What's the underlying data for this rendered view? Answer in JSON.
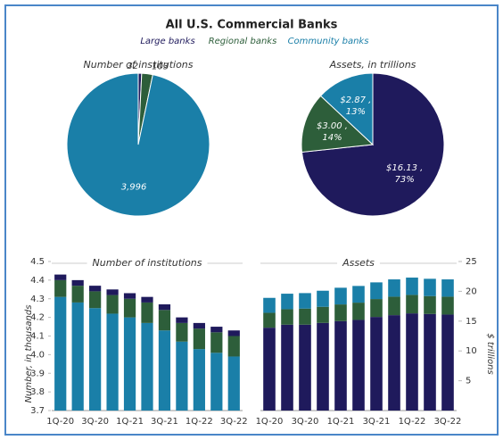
{
  "title": "All U.S. Commercial Banks",
  "chart_data": [
    {
      "type": "pie",
      "title": "Number of institutions",
      "categories": [
        "Large banks",
        "Regional banks",
        "Community banks"
      ],
      "colors": [
        "#1f1a5c",
        "#2d5e3a",
        "#1a7fa8"
      ],
      "values": [
        32,
        103,
        3996
      ],
      "value_labels": [
        "32",
        "103",
        "3,996"
      ]
    },
    {
      "type": "pie",
      "title": "Assets, in trillions",
      "categories": [
        "Large banks",
        "Regional banks",
        "Community banks"
      ],
      "colors": [
        "#1f1a5c",
        "#2d5e3a",
        "#1a7fa8"
      ],
      "values": [
        16.13,
        3.0,
        2.87
      ],
      "value_labels": [
        "$16.13 ,",
        "$3.00 ,",
        "$2.87 ,"
      ],
      "percents": [
        73,
        14,
        13
      ],
      "percent_labels": [
        "73%",
        "14%",
        "13%"
      ]
    },
    {
      "type": "bar",
      "title": "Number of institutions",
      "y_label": "Number, in thousands",
      "categories": [
        "1Q-20",
        null,
        "3Q-20",
        null,
        "1Q-21",
        null,
        "3Q-21",
        null,
        "1Q-22",
        null,
        "3Q-22"
      ],
      "series": [
        {
          "name": "Community banks",
          "color": "#1a7fa8",
          "values": [
            4.31,
            4.28,
            4.25,
            4.22,
            4.2,
            4.17,
            4.13,
            4.07,
            4.03,
            4.01,
            3.99
          ]
        },
        {
          "name": "Regional banks",
          "color": "#2d5e3a",
          "values": [
            0.09,
            0.09,
            0.09,
            0.1,
            0.1,
            0.11,
            0.11,
            0.1,
            0.11,
            0.11,
            0.11
          ]
        },
        {
          "name": "Large banks",
          "color": "#1f1a5c",
          "values": [
            0.03,
            0.03,
            0.03,
            0.03,
            0.03,
            0.03,
            0.03,
            0.03,
            0.03,
            0.03,
            0.03
          ]
        }
      ],
      "ylim": [
        3.7,
        4.5
      ],
      "yticks": [
        3.7,
        3.8,
        3.9,
        {
          "value": 4,
          "label": "4.0"
        },
        4.1,
        4.2,
        4.3,
        4.4,
        4.5
      ]
    },
    {
      "type": "bar",
      "title": "Assets",
      "y_label": "$ trillions",
      "y_side": "right",
      "categories": [
        "1Q-20",
        null,
        "3Q-20",
        null,
        "1Q-21",
        null,
        "3Q-21",
        null,
        "1Q-22",
        null,
        "3Q-22"
      ],
      "series": [
        {
          "name": "Large banks",
          "color": "#1f1a5c",
          "values": [
            13.9,
            14.4,
            14.4,
            14.7,
            15.0,
            15.2,
            15.7,
            16.0,
            16.3,
            16.2,
            16.1
          ]
        },
        {
          "name": "Regional banks",
          "color": "#2d5e3a",
          "values": [
            2.5,
            2.6,
            2.7,
            2.7,
            2.8,
            2.9,
            3.0,
            3.1,
            3.1,
            3.0,
            3.0
          ]
        },
        {
          "name": "Community banks",
          "color": "#1a7fa8",
          "values": [
            2.5,
            2.6,
            2.6,
            2.7,
            2.8,
            2.8,
            2.8,
            2.9,
            2.9,
            2.9,
            2.9
          ]
        }
      ],
      "ylim": [
        0,
        25
      ],
      "yticks": [
        5,
        10,
        15,
        20,
        25
      ]
    }
  ]
}
